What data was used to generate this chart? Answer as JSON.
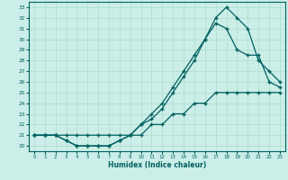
{
  "xlabel": "Humidex (Indice chaleur)",
  "bg_color": "#cceee8",
  "grid_color": "#aaddcc",
  "line_color": "#006060",
  "xlim": [
    -0.5,
    23.5
  ],
  "ylim": [
    19.5,
    33.5
  ],
  "xticks": [
    0,
    1,
    2,
    3,
    4,
    5,
    6,
    7,
    8,
    9,
    10,
    11,
    12,
    13,
    14,
    15,
    16,
    17,
    18,
    19,
    20,
    21,
    22,
    23
  ],
  "yticks": [
    20,
    21,
    22,
    23,
    24,
    25,
    26,
    27,
    28,
    29,
    30,
    31,
    32,
    33
  ],
  "line1_x": [
    0,
    1,
    2,
    3,
    4,
    5,
    6,
    7,
    8,
    9,
    10,
    11,
    12,
    13,
    14,
    15,
    16,
    17,
    18,
    19,
    20,
    21,
    22,
    23
  ],
  "line1_y": [
    21,
    21,
    21,
    21,
    21,
    21,
    21,
    21,
    21,
    21,
    21,
    22,
    22,
    23,
    23,
    24,
    24,
    25,
    25,
    25,
    25,
    25,
    25,
    25
  ],
  "line2_x": [
    0,
    1,
    2,
    3,
    4,
    5,
    6,
    7,
    8,
    9,
    10,
    11,
    12,
    13,
    14,
    15,
    16,
    17,
    18,
    19,
    20,
    21,
    22,
    23
  ],
  "line2_y": [
    21,
    21,
    21,
    20.5,
    20,
    20,
    20,
    20,
    20.5,
    21,
    22,
    23,
    24,
    25.5,
    27,
    28.5,
    30,
    31.5,
    31,
    29,
    28.5,
    28.5,
    26,
    25.5
  ],
  "line3_x": [
    0,
    1,
    2,
    3,
    4,
    5,
    6,
    7,
    8,
    9,
    10,
    11,
    12,
    13,
    14,
    15,
    16,
    17,
    18,
    19,
    20,
    21,
    22,
    23
  ],
  "line3_y": [
    21,
    21,
    21,
    20.5,
    20,
    20,
    20,
    20,
    20.5,
    21,
    22,
    22.5,
    23.5,
    25,
    26.5,
    28,
    30,
    32,
    33,
    32,
    31,
    28,
    27,
    26
  ]
}
